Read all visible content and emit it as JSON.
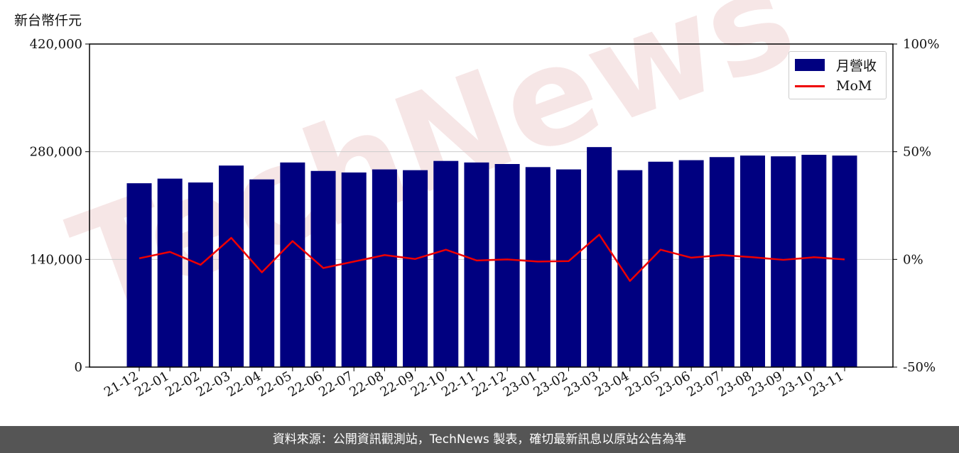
{
  "unit_label": "新台幣仟元",
  "footer": "資料來源：公開資訊觀測站，TechNews 製表，確切最新訊息以原站公告為準",
  "watermark": "TechNews",
  "colors": {
    "bar": "#000080",
    "line": "#ee0000",
    "footer_bg": "#555555",
    "watermark": "#e0b0b0"
  },
  "chart_data": {
    "type": "bar",
    "categories": [
      "21-12",
      "22-01",
      "22-02",
      "22-03",
      "22-04",
      "22-05",
      "22-06",
      "22-07",
      "22-08",
      "22-09",
      "22-10",
      "22-11",
      "22-12",
      "23-01",
      "23-02",
      "23-03",
      "23-04",
      "23-05",
      "23-06",
      "23-07",
      "23-08",
      "23-09",
      "23-10",
      "23-11"
    ],
    "series": [
      {
        "name": "月營收",
        "type": "bar",
        "axis": "left",
        "values": [
          239000,
          245000,
          240000,
          262000,
          244000,
          266000,
          255000,
          253000,
          257000,
          256000,
          268000,
          266000,
          264000,
          260000,
          257000,
          286000,
          256000,
          267000,
          269000,
          273000,
          275000,
          274000,
          276000,
          275000
        ]
      },
      {
        "name": "MoM",
        "type": "line",
        "axis": "right",
        "values": [
          0.5,
          3.5,
          -2.5,
          10.0,
          -6.0,
          8.5,
          -4.0,
          -1.0,
          2.0,
          0.2,
          4.5,
          -0.5,
          0.0,
          -1.0,
          -0.8,
          11.5,
          -10.0,
          4.5,
          0.8,
          2.0,
          1.0,
          -0.2,
          1.0,
          0.0
        ]
      }
    ],
    "ylim": [
      0,
      420000
    ],
    "yticks": [
      "0",
      "140,000",
      "280,000",
      "420,000"
    ],
    "ytick_values": [
      0,
      140000,
      280000,
      420000
    ],
    "y2lim": [
      -50,
      100
    ],
    "y2ticks": [
      "-50%",
      "0%",
      "50%",
      "100%"
    ],
    "y2tick_values": [
      -50,
      0,
      50,
      100
    ],
    "grid": "horizontal",
    "legend": "top-right",
    "title": "",
    "xlabel": ""
  }
}
